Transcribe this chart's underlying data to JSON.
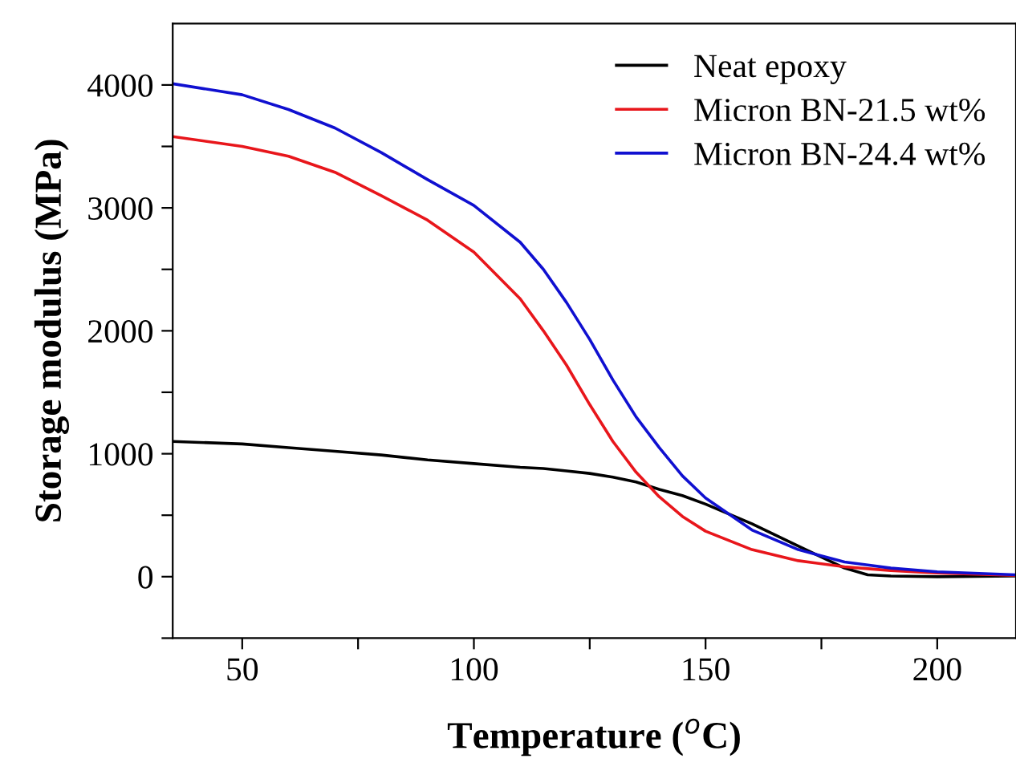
{
  "chart_data": {
    "type": "line",
    "xlabel": "Temperature ($^{o}$C)",
    "ylabel": "Storage modulus (MPa)",
    "xlim": [
      35,
      217
    ],
    "ylim": [
      -500,
      4500
    ],
    "xticks": [
      50,
      {
        "value": 75,
        "label": null
      },
      100,
      {
        "value": 125,
        "label": null
      },
      150,
      {
        "value": 175,
        "label": null
      },
      200
    ],
    "yticks": [
      {
        "value": -500,
        "label": null
      },
      0,
      {
        "value": 500,
        "label": null
      },
      1000,
      {
        "value": 1500,
        "label": null
      },
      2000,
      {
        "value": 2500,
        "label": null
      },
      3000,
      {
        "value": 3500,
        "label": null
      },
      4000
    ],
    "legend": "top right",
    "grid": false,
    "line_style": "solid",
    "marker": "none",
    "x": [
      35,
      50,
      60,
      70,
      80,
      90,
      100,
      110,
      115,
      120,
      125,
      130,
      135,
      140,
      145,
      150,
      160,
      170,
      180,
      185,
      190,
      200,
      217
    ],
    "series": [
      {
        "name": "Neat epoxy",
        "color": "#000000",
        "values": [
          1100,
          1080,
          1050,
          1020,
          990,
          950,
          920,
          890,
          880,
          860,
          840,
          810,
          770,
          710,
          660,
          590,
          430,
          250,
          70,
          15,
          5,
          0,
          5
        ]
      },
      {
        "name": "Micron BN-21.5 wt%",
        "color": "#e8161b",
        "values": [
          3580,
          3500,
          3420,
          3290,
          3100,
          2900,
          2640,
          2260,
          2000,
          1720,
          1400,
          1100,
          850,
          650,
          490,
          370,
          220,
          130,
          80,
          65,
          50,
          30,
          10
        ]
      },
      {
        "name": "Micron BN-24.4 wt%",
        "color": "#1010d0",
        "values": [
          4010,
          3920,
          3800,
          3650,
          3450,
          3230,
          3020,
          2720,
          2500,
          2230,
          1930,
          1600,
          1300,
          1050,
          820,
          640,
          380,
          220,
          120,
          95,
          70,
          40,
          15
        ]
      }
    ]
  }
}
